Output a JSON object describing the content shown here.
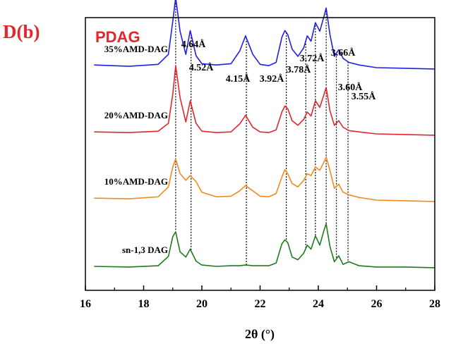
{
  "panel_label": "D(b)",
  "chart_data": {
    "type": "line",
    "title": "PDAG",
    "xlabel": "2θ (°)",
    "ylabel": "",
    "xlim": [
      16,
      28
    ],
    "x_ticks": [
      "16",
      "18",
      "20",
      "22",
      "24",
      "26",
      "28"
    ],
    "grid": false,
    "legend": "none",
    "colors": {
      "title": "#e3262b",
      "axis": "#000000",
      "dashed": "#000000"
    },
    "series": [
      {
        "name": "35%AMD-DAG",
        "color": "#1f1fe6",
        "x": [
          16.3,
          17.5,
          18.5,
          18.85,
          19.0,
          19.1,
          19.25,
          19.45,
          19.6,
          19.8,
          20.0,
          20.5,
          21.0,
          21.3,
          21.5,
          21.75,
          22.0,
          22.3,
          22.55,
          22.75,
          22.85,
          22.95,
          23.1,
          23.3,
          23.5,
          23.62,
          23.75,
          23.9,
          24.05,
          24.2,
          24.27,
          24.4,
          24.55,
          24.7,
          24.85,
          25.05,
          25.4,
          26.0,
          27.0,
          28.0
        ],
        "y": [
          3.04,
          3.02,
          3.05,
          3.2,
          3.7,
          4.06,
          3.55,
          3.2,
          3.56,
          3.18,
          3.06,
          3.04,
          3.06,
          3.25,
          3.48,
          3.2,
          3.05,
          3.03,
          3.08,
          3.46,
          3.56,
          3.5,
          3.28,
          3.17,
          3.3,
          3.48,
          3.4,
          3.68,
          3.55,
          3.78,
          3.9,
          3.5,
          3.17,
          3.27,
          3.14,
          3.08,
          3.04,
          3.0,
          2.99,
          2.98
        ]
      },
      {
        "name": "20%AMD-DAG",
        "color": "#e3262b",
        "x": [
          16.3,
          17.5,
          18.5,
          18.85,
          19.0,
          19.1,
          19.25,
          19.45,
          19.6,
          19.8,
          20.0,
          20.5,
          21.0,
          21.3,
          21.5,
          21.75,
          22.0,
          22.3,
          22.55,
          22.75,
          22.85,
          22.95,
          23.1,
          23.3,
          23.5,
          23.62,
          23.75,
          23.9,
          24.05,
          24.2,
          24.27,
          24.4,
          24.55,
          24.7,
          24.85,
          25.05,
          25.4,
          26.0,
          27.0,
          28.0
        ],
        "y": [
          2.03,
          2.02,
          2.04,
          2.16,
          2.6,
          3.03,
          2.55,
          2.18,
          2.5,
          2.16,
          2.04,
          2.02,
          2.03,
          2.15,
          2.28,
          2.1,
          2.03,
          2.02,
          2.06,
          2.33,
          2.42,
          2.38,
          2.2,
          2.13,
          2.22,
          2.33,
          2.27,
          2.5,
          2.4,
          2.6,
          2.7,
          2.35,
          2.13,
          2.2,
          2.1,
          2.05,
          2.03,
          2.0,
          1.99,
          1.98
        ]
      },
      {
        "name": "10%AMD-DAG",
        "color": "#f28a1c",
        "x": [
          16.3,
          17.5,
          18.5,
          18.85,
          19.0,
          19.1,
          19.25,
          19.45,
          19.6,
          19.8,
          20.0,
          20.5,
          21.0,
          21.3,
          21.5,
          21.75,
          22.0,
          22.3,
          22.55,
          22.75,
          22.85,
          22.95,
          23.1,
          23.3,
          23.5,
          23.62,
          23.75,
          23.9,
          24.05,
          24.2,
          24.27,
          24.4,
          24.55,
          24.7,
          24.85,
          25.05,
          25.4,
          26.0,
          27.0,
          28.0
        ],
        "y": [
          1.03,
          1.02,
          1.05,
          1.2,
          1.5,
          1.62,
          1.4,
          1.3,
          1.37,
          1.28,
          1.12,
          1.05,
          1.06,
          1.14,
          1.22,
          1.14,
          1.06,
          1.05,
          1.1,
          1.35,
          1.46,
          1.4,
          1.25,
          1.2,
          1.3,
          1.4,
          1.37,
          1.5,
          1.45,
          1.58,
          1.65,
          1.45,
          1.18,
          1.24,
          1.12,
          1.08,
          1.04,
          1.0,
          0.99,
          0.98
        ]
      },
      {
        "name": "sn-1,3 DAG",
        "color": "#1e7a1e",
        "x": [
          16.3,
          17.5,
          18.5,
          18.85,
          19.0,
          19.1,
          19.25,
          19.45,
          19.6,
          19.8,
          20.0,
          20.5,
          21.0,
          21.3,
          21.5,
          21.75,
          22.0,
          22.3,
          22.55,
          22.75,
          22.85,
          22.95,
          23.1,
          23.3,
          23.5,
          23.62,
          23.75,
          23.9,
          24.05,
          24.2,
          24.27,
          24.4,
          24.55,
          24.7,
          24.85,
          25.05,
          25.4,
          26.0,
          27.0,
          28.0
        ],
        "y": [
          0.0,
          -0.01,
          0.01,
          0.15,
          0.45,
          0.52,
          0.22,
          0.14,
          0.26,
          0.08,
          0.02,
          0.0,
          0.01,
          0.01,
          0.02,
          0.01,
          0.01,
          0.01,
          0.05,
          0.34,
          0.4,
          0.36,
          0.14,
          0.1,
          0.2,
          0.32,
          0.26,
          0.46,
          0.32,
          0.55,
          0.64,
          0.3,
          0.07,
          0.16,
          0.03,
          0.07,
          0.01,
          -0.01,
          -0.01,
          -0.02
        ]
      }
    ],
    "annotations": [
      {
        "text": "4.64Å",
        "x": 19.1
      },
      {
        "text": "4.52Å",
        "x": 19.63
      },
      {
        "text": "4.15Å",
        "x": 21.53
      },
      {
        "text": "3.92Å",
        "x": 22.9
      },
      {
        "text": "3.78Å",
        "x": 23.57
      },
      {
        "text": "3.72Å",
        "x": 23.9
      },
      {
        "text": "3.66Å",
        "x": 24.27
      },
      {
        "text": "3.60Å",
        "x": 24.62
      },
      {
        "text": "3.55Å",
        "x": 25.02
      }
    ],
    "dashed_lines_x": [
      19.1,
      19.63,
      21.53,
      22.9,
      23.57,
      23.9,
      24.27,
      24.62,
      25.02
    ]
  }
}
